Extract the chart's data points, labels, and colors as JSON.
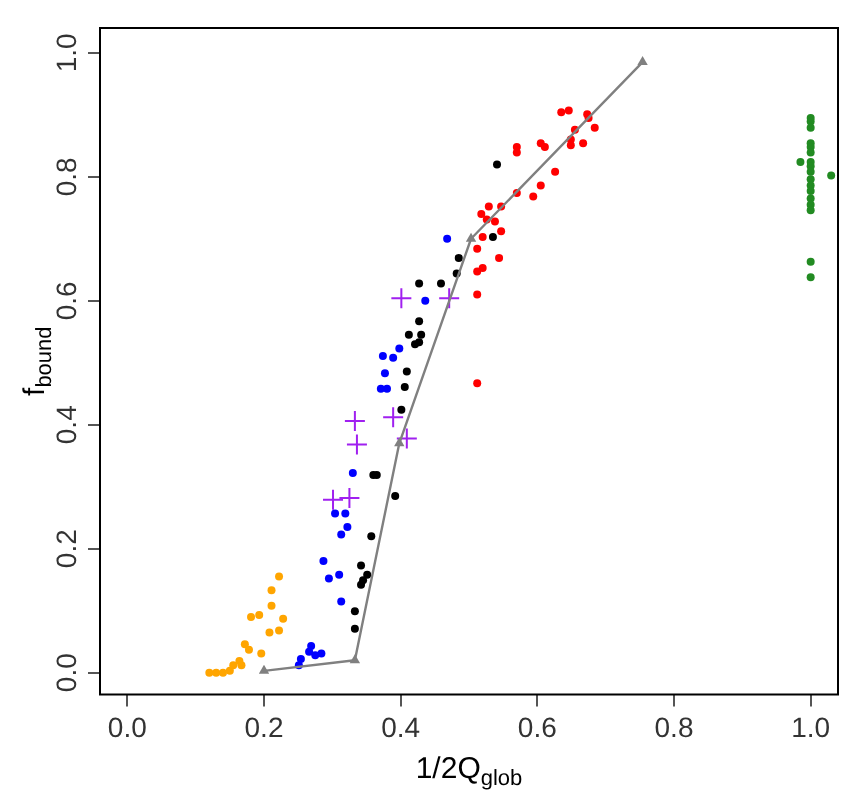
{
  "chart_data": {
    "type": "scatter",
    "xlabel": "1/2Q$_{glob}$",
    "ylabel": "f$_{bound}$",
    "xlim": [
      -0.04,
      1.04
    ],
    "ylim": [
      -0.035,
      1.04
    ],
    "xticks": [
      {
        "value": 0,
        "label": "0.0"
      },
      0.2,
      0.4,
      0.6,
      0.8,
      {
        "value": 1,
        "label": "1.0"
      }
    ],
    "yticks": [
      {
        "value": 0,
        "label": "0.0"
      },
      0.2,
      0.4,
      0.6,
      0.8,
      {
        "value": 1,
        "label": "1.0"
      }
    ],
    "marker": "circle",
    "series": [
      {
        "color": "#ffa500",
        "x": [
          0.12,
          0.13,
          0.14,
          0.15,
          0.155,
          0.164,
          0.167,
          0.172,
          0.178,
          0.196,
          0.181,
          0.193,
          0.208,
          0.222,
          0.211,
          0.211,
          0.222,
          0.228
        ],
        "values": [
          0,
          0,
          0,
          0.003,
          0.012,
          0.019,
          0.012,
          0.046,
          0.037,
          0.031,
          0.09,
          0.093,
          0.065,
          0.068,
          0.108,
          0.133,
          0.155,
          0.087
        ]
      },
      {
        "color": "#0000ff",
        "x": [
          0.251,
          0.254,
          0.266,
          0.269,
          0.275,
          0.284,
          0.313,
          0.295,
          0.31,
          0.287,
          0.313,
          0.322,
          0.304,
          0.319,
          0.33,
          0.371,
          0.38,
          0.377,
          0.374,
          0.389,
          0.398,
          0.436,
          0.468
        ],
        "values": [
          0.012,
          0.022,
          0.034,
          0.043,
          0.028,
          0.031,
          0.115,
          0.152,
          0.158,
          0.18,
          0.223,
          0.235,
          0.257,
          0.257,
          0.322,
          0.458,
          0.458,
          0.483,
          0.511,
          0.508,
          0.523,
          0.6,
          0.7
        ]
      },
      {
        "color": "#000000",
        "x": [
          0.36,
          0.392,
          0.357,
          0.342,
          0.351,
          0.345,
          0.342,
          0.333,
          0.333,
          0.365,
          0.401,
          0.406,
          0.409,
          0.412,
          0.421,
          0.427,
          0.43,
          0.427,
          0.427,
          0.459,
          0.482,
          0.485,
          0.535,
          0.541
        ],
        "values": [
          0.319,
          0.285,
          0.22,
          0.173,
          0.158,
          0.149,
          0.142,
          0.099,
          0.071,
          0.319,
          0.424,
          0.461,
          0.486,
          0.545,
          0.53,
          0.533,
          0.545,
          0.567,
          0.628,
          0.628,
          0.644,
          0.669,
          0.703,
          0.82
        ]
      },
      {
        "color": "#ff0000",
        "x": [
          0.635,
          0.646,
          0.673,
          0.675,
          0.684,
          0.655,
          0.649,
          0.667,
          0.649,
          0.605,
          0.611,
          0.57,
          0.57,
          0.626,
          0.605,
          0.594,
          0.57,
          0.547,
          0.529,
          0.518,
          0.526,
          0.538,
          0.547,
          0.52,
          0.512,
          0.544,
          0.52,
          0.512,
          0.512,
          0.512
        ],
        "values": [
          0.904,
          0.907,
          0.901,
          0.895,
          0.879,
          0.876,
          0.86,
          0.854,
          0.851,
          0.854,
          0.848,
          0.848,
          0.839,
          0.808,
          0.786,
          0.768,
          0.774,
          0.752,
          0.752,
          0.74,
          0.731,
          0.728,
          0.712,
          0.703,
          0.684,
          0.669,
          0.653,
          0.647,
          0.61,
          0.467
        ]
      },
      {
        "color": "#228b22",
        "x": [
          1,
          1,
          1,
          1,
          1,
          1,
          1,
          1,
          1,
          1,
          1,
          1,
          1,
          1,
          1,
          1,
          1,
          0.985,
          1.03
        ],
        "values": [
          0.895,
          0.889,
          0.879,
          0.854,
          0.848,
          0.839,
          0.824,
          0.817,
          0.808,
          0.796,
          0.786,
          0.777,
          0.765,
          0.755,
          0.746,
          0.663,
          0.638,
          0.824,
          0.802
        ]
      },
      {
        "color": "#a020f0",
        "marker": "cross",
        "x": [
          0.401,
          0.471,
          0.333,
          0.336,
          0.389,
          0.409,
          0.301,
          0.325
        ],
        "values": [
          0.604,
          0.604,
          0.406,
          0.368,
          0.412,
          0.378,
          0.279,
          0.282
        ]
      },
      {
        "type": "line",
        "color": "#808080",
        "marker": "triangle",
        "x": [
          0.2,
          0.333,
          0.398,
          0.503,
          0.754
        ],
        "values": [
          0.003,
          0.02,
          0.37,
          0.7,
          0.985
        ]
      }
    ]
  }
}
